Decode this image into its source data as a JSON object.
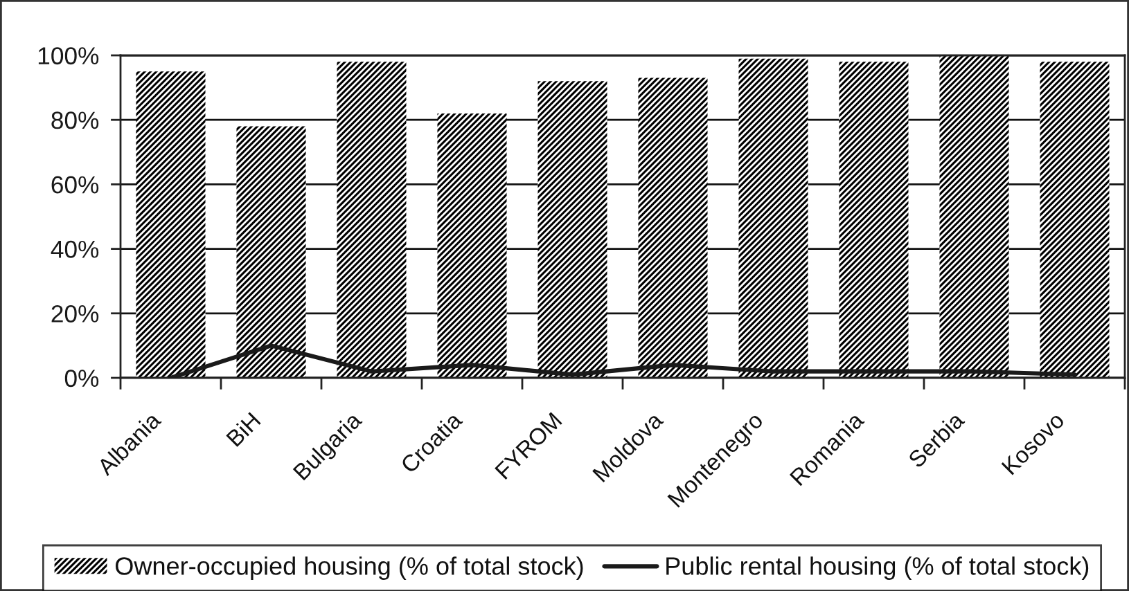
{
  "chart_data": {
    "type": "bar",
    "categories": [
      "Albania",
      "BiH",
      "Bulgaria",
      "Croatia",
      "FYROM",
      "Moldova",
      "Montenegro",
      "Romania",
      "Serbia",
      "Kosovo"
    ],
    "series": [
      {
        "name": "Owner-occupied housing (% of total stock)",
        "color": "#000000",
        "values": [
          95,
          78,
          98,
          82,
          92,
          93,
          99,
          98,
          100,
          98
        ]
      },
      {
        "name": "Public rental housing (% of total stock)",
        "type": "line",
        "color": "#1a1a1a",
        "values": [
          0,
          10,
          2,
          4,
          1,
          4,
          2,
          2,
          2,
          1
        ]
      }
    ],
    "ylim": [
      0,
      100
    ],
    "yticks": [
      {
        "value": 0,
        "label": "0%"
      },
      {
        "value": 20,
        "label": "20%"
      },
      {
        "value": 40,
        "label": "40%"
      },
      {
        "value": 60,
        "label": "60%"
      },
      {
        "value": 80,
        "label": "80%"
      },
      {
        "value": 100,
        "label": "100%"
      }
    ],
    "grid": "y",
    "legend": "bottom",
    "line_style": "solid"
  }
}
